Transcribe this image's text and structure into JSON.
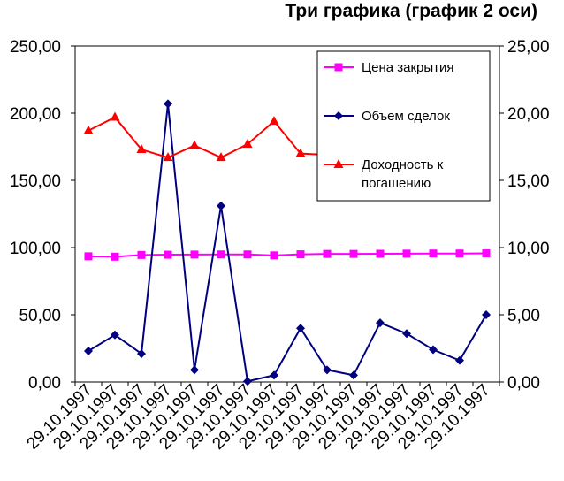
{
  "chart_data": {
    "type": "line",
    "title": "Три графика (график 2 оси)",
    "categories": [
      "29.10.1997",
      "29.10.1997",
      "29.10.1997",
      "29.10.1997",
      "29.10.1997",
      "29.10.1997",
      "29.10.1997",
      "29.10.1997",
      "29.10.1997",
      "29.10.1997",
      "29.10.1997",
      "29.10.1997",
      "29.10.1997",
      "29.10.1997",
      "29.10.1997",
      "29.10.1997"
    ],
    "y_left": {
      "ylim": [
        0,
        250
      ],
      "ticks": [
        "0,00",
        "50,00",
        "100,00",
        "150,00",
        "200,00",
        "250,00"
      ]
    },
    "y_right": {
      "ylim": [
        0,
        25
      ],
      "ticks": [
        "0,00",
        "5,00",
        "10,00",
        "15,00",
        "20,00",
        "25,00"
      ]
    },
    "grid": false,
    "legend_position": "top-right",
    "series": [
      {
        "name": "Цена закрытия",
        "axis": "left",
        "color": "#ff00ff",
        "marker": "square",
        "values": [
          93.5,
          93.2,
          94.5,
          94.7,
          94.8,
          94.9,
          94.9,
          94.2,
          95.0,
          95.3,
          95.3,
          95.4,
          95.5,
          95.6,
          95.6,
          95.7
        ]
      },
      {
        "name": "Объем сделок",
        "axis": "left",
        "color": "#000080",
        "marker": "diamond",
        "values": [
          23,
          35,
          21,
          207,
          9,
          131,
          0.5,
          5,
          40,
          9,
          5,
          44,
          36,
          24,
          16,
          50
        ]
      },
      {
        "name": "Доходность к погашению",
        "axis": "right",
        "color": "#ff0000",
        "marker": "triangle",
        "legend_lines": [
          "Доходность к",
          "погашению"
        ],
        "values": [
          18.7,
          19.7,
          17.3,
          16.7,
          17.6,
          16.7,
          17.7,
          19.4,
          17.0,
          16.9,
          null,
          null,
          null,
          null,
          null,
          null
        ]
      }
    ]
  }
}
